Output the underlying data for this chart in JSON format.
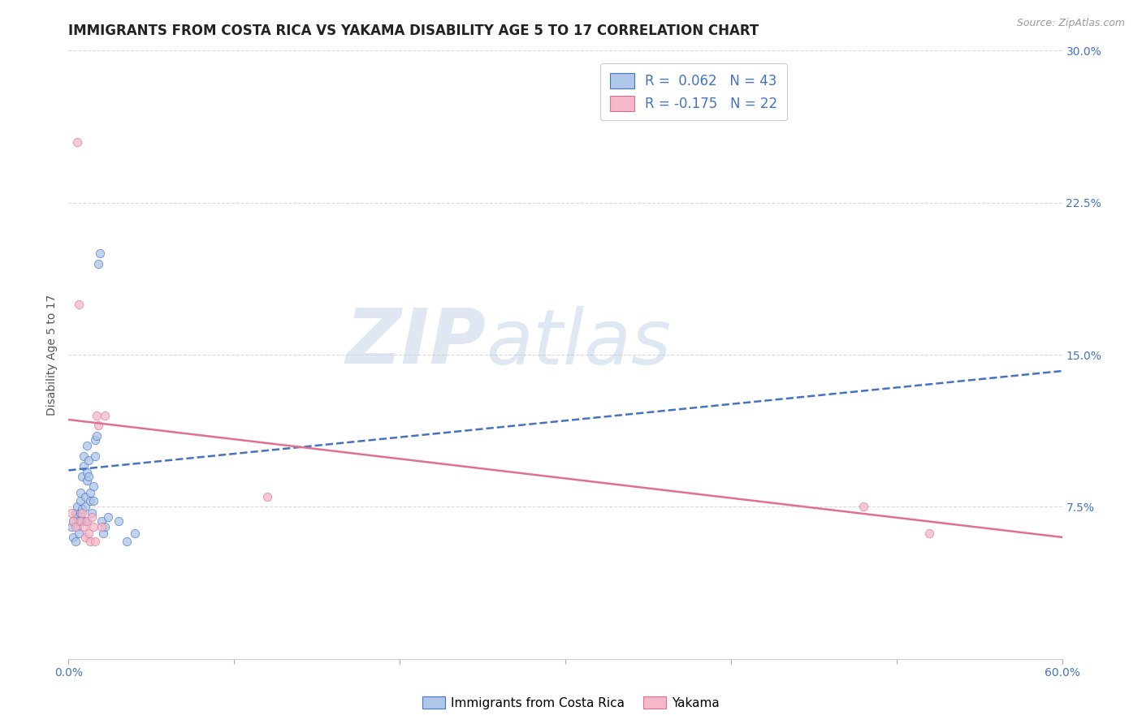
{
  "title": "IMMIGRANTS FROM COSTA RICA VS YAKAMA DISABILITY AGE 5 TO 17 CORRELATION CHART",
  "source_text": "Source: ZipAtlas.com",
  "ylabel": "Disability Age 5 to 17",
  "xlim": [
    0.0,
    0.6
  ],
  "ylim": [
    0.0,
    0.3
  ],
  "yticks": [
    0.075,
    0.15,
    0.225,
    0.3
  ],
  "ytick_labels": [
    "7.5%",
    "15.0%",
    "22.5%",
    "30.0%"
  ],
  "xticks": [
    0.0,
    0.1,
    0.2,
    0.3,
    0.4,
    0.5,
    0.6
  ],
  "xtick_labels": [
    "0.0%",
    "",
    "",
    "",
    "",
    "",
    "60.0%"
  ],
  "blue_R": 0.062,
  "blue_N": 43,
  "pink_R": -0.175,
  "pink_N": 22,
  "blue_color": "#aec6e8",
  "blue_line_color": "#4472c4",
  "pink_color": "#f4b8c8",
  "pink_line_color": "#e07090",
  "watermark_zip": "ZIP",
  "watermark_atlas": "atlas",
  "legend_label_blue": "Immigrants from Costa Rica",
  "legend_label_pink": "Yakama",
  "blue_scatter_x": [
    0.002,
    0.003,
    0.003,
    0.004,
    0.004,
    0.005,
    0.005,
    0.005,
    0.006,
    0.006,
    0.007,
    0.007,
    0.007,
    0.008,
    0.008,
    0.008,
    0.009,
    0.009,
    0.01,
    0.01,
    0.01,
    0.011,
    0.011,
    0.011,
    0.012,
    0.012,
    0.013,
    0.013,
    0.014,
    0.015,
    0.015,
    0.016,
    0.016,
    0.017,
    0.018,
    0.019,
    0.02,
    0.021,
    0.022,
    0.024,
    0.03,
    0.035,
    0.04
  ],
  "blue_scatter_y": [
    0.065,
    0.06,
    0.068,
    0.058,
    0.072,
    0.065,
    0.07,
    0.075,
    0.062,
    0.068,
    0.078,
    0.072,
    0.082,
    0.068,
    0.074,
    0.09,
    0.095,
    0.1,
    0.068,
    0.075,
    0.08,
    0.088,
    0.092,
    0.105,
    0.09,
    0.098,
    0.078,
    0.082,
    0.072,
    0.078,
    0.085,
    0.1,
    0.108,
    0.11,
    0.195,
    0.2,
    0.068,
    0.062,
    0.065,
    0.07,
    0.068,
    0.058,
    0.062
  ],
  "pink_scatter_x": [
    0.002,
    0.003,
    0.004,
    0.005,
    0.006,
    0.007,
    0.008,
    0.009,
    0.01,
    0.011,
    0.012,
    0.013,
    0.014,
    0.015,
    0.016,
    0.017,
    0.018,
    0.02,
    0.022,
    0.12,
    0.48,
    0.52
  ],
  "pink_scatter_y": [
    0.072,
    0.068,
    0.065,
    0.255,
    0.175,
    0.068,
    0.072,
    0.065,
    0.06,
    0.068,
    0.062,
    0.058,
    0.07,
    0.065,
    0.058,
    0.12,
    0.115,
    0.065,
    0.12,
    0.08,
    0.075,
    0.062
  ],
  "title_fontsize": 12,
  "axis_label_fontsize": 10,
  "tick_label_color": "#4472c4",
  "grid_color": "#d0d0d0",
  "background_color": "#ffffff",
  "blue_trend_x0": 0.0,
  "blue_trend_x1": 0.6,
  "blue_trend_y0": 0.093,
  "blue_trend_y1": 0.142,
  "pink_trend_x0": 0.0,
  "pink_trend_x1": 0.6,
  "pink_trend_y0": 0.118,
  "pink_trend_y1": 0.06
}
